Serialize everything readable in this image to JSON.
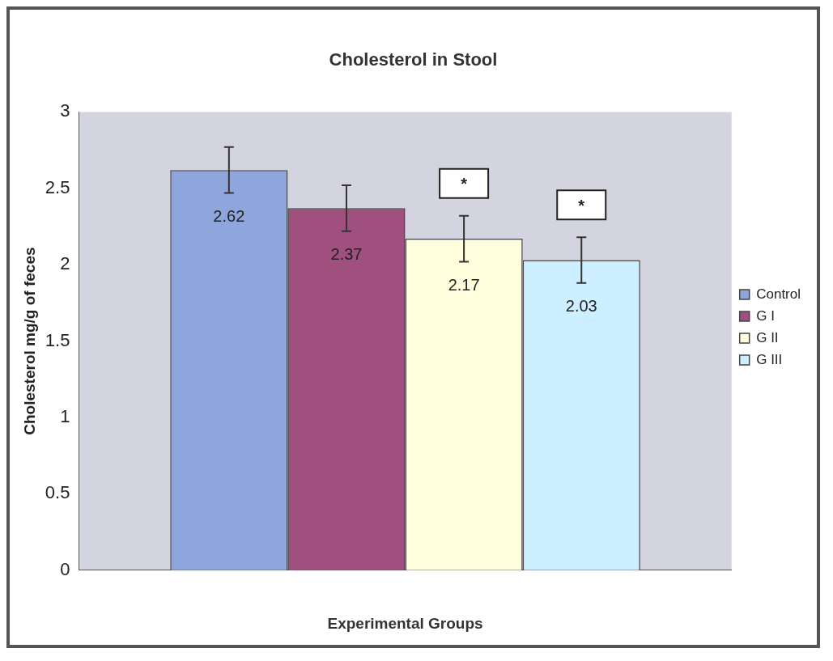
{
  "chart_data": {
    "type": "bar",
    "title": "Cholesterol in Stool",
    "xlabel": "Experimental Groups",
    "ylabel": "Cholesterol mg/g of feces",
    "categories": [
      null
    ],
    "series": [
      {
        "name": "Control",
        "color": "#8ea6dc",
        "values": [
          2.62
        ],
        "errors": [
          0.15
        ]
      },
      {
        "name": "G I",
        "color": "#a0507f",
        "values": [
          2.37
        ],
        "errors": [
          0.15
        ]
      },
      {
        "name": "G II",
        "color": "#ffffdd",
        "values": [
          2.17
        ],
        "errors": [
          0.15
        ]
      },
      {
        "name": "G III",
        "color": "#ccf0ff",
        "values": [
          2.03
        ],
        "errors": [
          0.15
        ]
      }
    ],
    "ylim": [
      0,
      3
    ],
    "yticks": [
      0,
      0.5,
      1,
      1.5,
      2,
      2.5,
      3
    ],
    "grid": false,
    "legend": "right",
    "data_labels": true,
    "annotations": [
      "*",
      "*"
    ]
  }
}
